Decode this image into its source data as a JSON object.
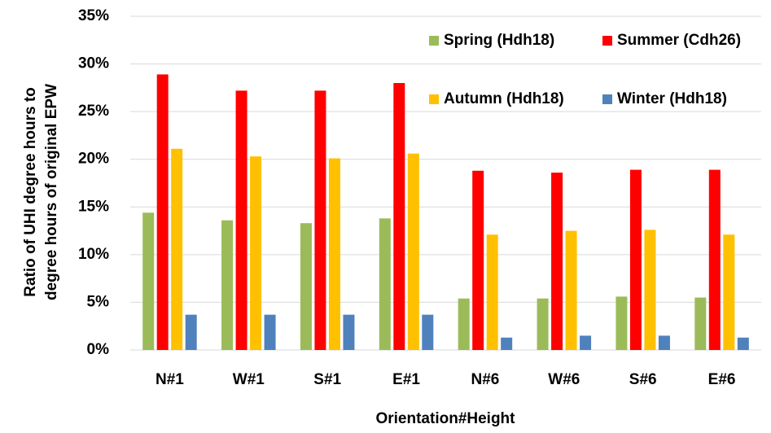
{
  "chart_data": {
    "type": "bar",
    "xlabel": "Orientation#Height",
    "ylabel": [
      "Ratio of UHI degree hours to",
      "degree hours of original EPW"
    ],
    "categories": [
      "N#1",
      "W#1",
      "S#1",
      "E#1",
      "N#6",
      "W#6",
      "S#6",
      "E#6"
    ],
    "series": [
      {
        "name": "Spring (Hdh18)",
        "color": "#9bbb59",
        "values": [
          14.4,
          13.6,
          13.3,
          13.8,
          5.4,
          5.4,
          5.6,
          5.5
        ]
      },
      {
        "name": "Summer (Cdh26)",
        "color": "#ff0000",
        "values": [
          28.9,
          27.2,
          27.2,
          28.0,
          18.8,
          18.6,
          18.9,
          18.9
        ]
      },
      {
        "name": "Autumn (Hdh18)",
        "color": "#ffc000",
        "values": [
          21.1,
          20.3,
          20.1,
          20.6,
          12.1,
          12.5,
          12.6,
          12.1
        ]
      },
      {
        "name": "Winter (Hdh18)",
        "color": "#4f81bd",
        "values": [
          3.7,
          3.7,
          3.7,
          3.7,
          1.3,
          1.5,
          1.5,
          1.3
        ]
      }
    ],
    "ylim": [
      0,
      35
    ],
    "yticks": [
      {
        "value": 0,
        "label": "0%"
      },
      {
        "value": 5,
        "label": "5%"
      },
      {
        "value": 10,
        "label": "10%"
      },
      {
        "value": 15,
        "label": "15%"
      },
      {
        "value": 20,
        "label": "20%"
      },
      {
        "value": 25,
        "label": "25%"
      },
      {
        "value": 30,
        "label": "30%"
      },
      {
        "value": 35,
        "label": "35%"
      }
    ],
    "grid": true,
    "legend": "upper right"
  }
}
